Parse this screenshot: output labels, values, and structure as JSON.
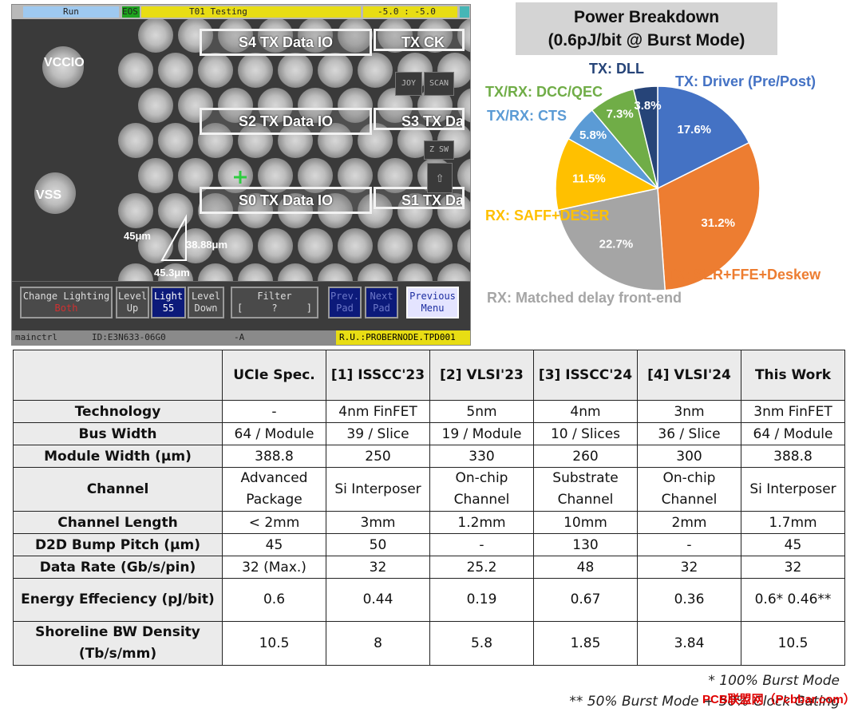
{
  "prober": {
    "titlebar": {
      "run": "Run",
      "eos": "EOS",
      "test": "T01 Testing",
      "position": "-5.0 : -5.0"
    },
    "tx_boxes": {
      "s4": "S4 TX Data IO",
      "txck": "TX CK",
      "s2": "S2 TX Data IO",
      "s3": "S3 TX Da",
      "s0": "S0 TX Data IO",
      "s1": "S1 TX Da"
    },
    "pads": {
      "vccio": "VCCIO",
      "vss": "VSS"
    },
    "side_buttons": {
      "joy": "JOY",
      "scan": "SCAN",
      "zsw": "Z SW"
    },
    "measure": {
      "a": "45μm",
      "b": "38.88μm",
      "c": "45.3μm"
    },
    "buttons": {
      "change_lighting": "Change Lighting",
      "change_lighting_sub": "Both",
      "level_up_1": "Level",
      "level_up_2": "Up",
      "light_1": "Light",
      "light_2": "55",
      "level_down_1": "Level",
      "level_down_2": "Down",
      "filter": "Filter",
      "filter_value": "[     ?     ]",
      "prev_pad_1": "Prev.",
      "prev_pad_2": "Pad",
      "next_pad_1": "Next",
      "next_pad_2": "Pad",
      "prev_menu_1": "Previous",
      "prev_menu_2": "Menu"
    },
    "status": {
      "left": "mainctrl",
      "id": "ID:E3N633-06G0",
      "a": "-A",
      "ru": "R.U.:PROBERNODE.TPD001"
    }
  },
  "pie": {
    "title_line1": "Power Breakdown",
    "title_line2": "(0.6pJ/bit @ Burst Mode)"
  },
  "chart_data": {
    "type": "pie",
    "title": "Power Breakdown (0.6pJ/bit @ Burst Mode)",
    "slices": [
      {
        "label": "TX: Driver (Pre/Post)",
        "value": 17.6,
        "value_label": "17.6%",
        "color": "#4472c4",
        "label_color": "#4472c4"
      },
      {
        "label": "TX: SER+FFE+Deskew",
        "value": 31.2,
        "value_label": "31.2%",
        "color": "#ed7d31",
        "label_color": "#ed7d31"
      },
      {
        "label": "RX: Matched delay front-end",
        "value": 22.7,
        "value_label": "22.7%",
        "color": "#a5a5a5",
        "label_color": "#a5a5a5"
      },
      {
        "label": "RX: SAFF+DESER",
        "value": 11.5,
        "value_label": "11.5%",
        "color": "#ffc000",
        "label_color": "#ffc000"
      },
      {
        "label": "TX/RX: CTS",
        "value": 5.8,
        "value_label": "5.8%",
        "color": "#5b9bd5",
        "label_color": "#5b9bd5"
      },
      {
        "label": "TX/RX: DCC/QEC",
        "value": 7.3,
        "value_label": "7.3%",
        "color": "#70ad47",
        "label_color": "#70ad47"
      },
      {
        "label": "TX: DLL",
        "value": 3.8,
        "value_label": "3.8%",
        "color": "#264478",
        "label_color": "#264478"
      }
    ]
  },
  "table": {
    "headers": [
      "",
      "UCIe Spec.",
      "[1] ISSCC'23",
      "[2] VLSI'23",
      "[3] ISSCC'24",
      "[4] VLSI'24",
      "This Work"
    ],
    "rows": [
      {
        "label": "Technology",
        "cells": [
          "-",
          "4nm FinFET",
          "5nm",
          "4nm",
          "3nm",
          "3nm FinFET"
        ]
      },
      {
        "label": "Bus Width",
        "cells": [
          "64 / Module",
          "39 / Slice",
          "19 / Module",
          "10 / Slices",
          "36 / Slice",
          "64 / Module"
        ]
      },
      {
        "label": "Module Width (μm)",
        "cells": [
          "388.8",
          "250",
          "330",
          "260",
          "300",
          "388.8"
        ]
      },
      {
        "label": "Channel",
        "cells": [
          "Advanced Package",
          "Si Interposer",
          "On-chip Channel",
          "Substrate Channel",
          "On-chip Channel",
          "Si Interposer"
        ]
      },
      {
        "label": "Channel Length",
        "cells": [
          "< 2mm",
          "3mm",
          "1.2mm",
          "10mm",
          "2mm",
          "1.7mm"
        ]
      },
      {
        "label": "D2D Bump Pitch (μm)",
        "cells": [
          "45",
          "50",
          "-",
          "130",
          "-",
          "45"
        ]
      },
      {
        "label": "Data Rate (Gb/s/pin)",
        "cells": [
          "32 (Max.)",
          "32",
          "25.2",
          "48",
          "32",
          "32"
        ]
      },
      {
        "label": "Energy Effeciency (pJ/bit)",
        "cells": [
          "0.6",
          "0.44",
          "0.19",
          "0.67",
          "0.36",
          "0.6* 0.46**"
        ]
      },
      {
        "label": "Shoreline BW Density (Tb/s/mm)",
        "cells": [
          "10.5",
          "8",
          "5.8",
          "1.85",
          "3.84",
          "10.5"
        ]
      }
    ],
    "footnote1": "* 100% Burst Mode",
    "footnote2": "** 50% Burst Mode + 50% Clock Gating"
  },
  "watermark": "PCB联盟网（Pcbbar.com）"
}
